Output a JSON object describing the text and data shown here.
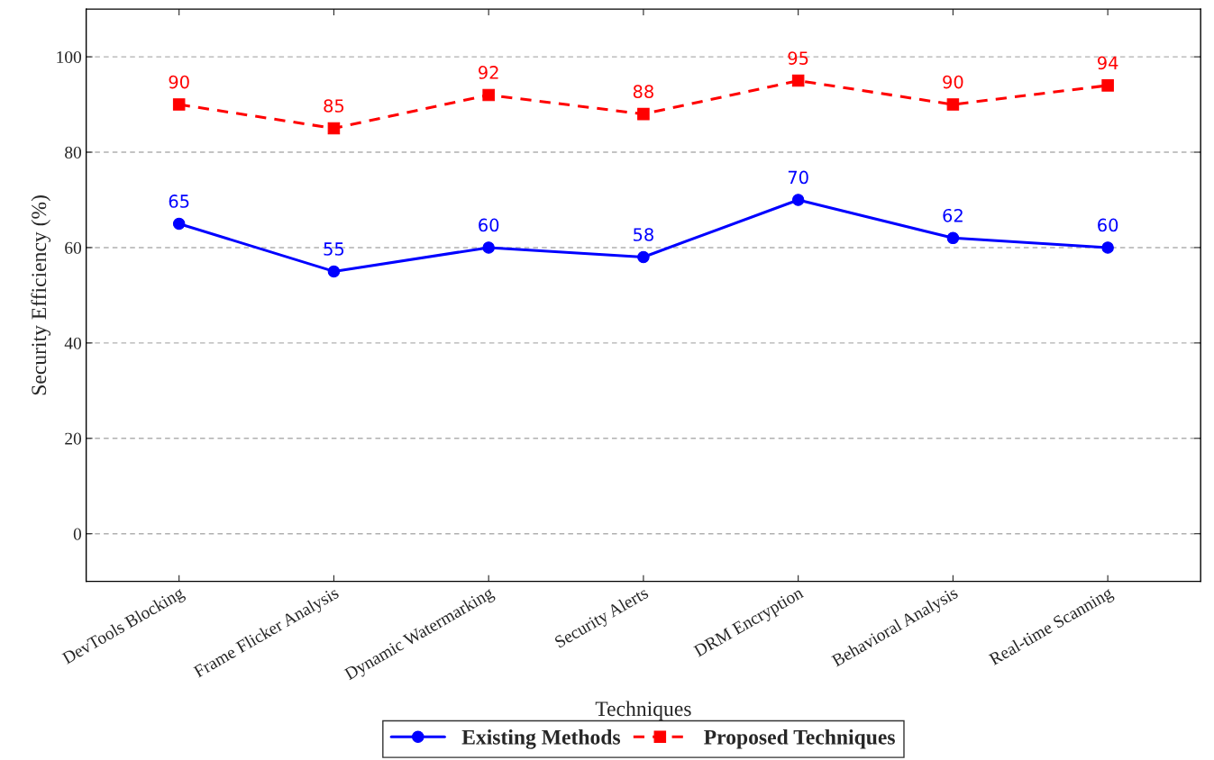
{
  "chart_data": {
    "type": "line",
    "xlabel": "Techniques",
    "ylabel": "Security Efficiency (%)",
    "categories": [
      "DevTools Blocking",
      "Frame Flicker Analysis",
      "Dynamic Watermarking",
      "Security Alerts",
      "DRM Encryption",
      "Behavioral Analysis",
      "Real-time Scanning"
    ],
    "series": [
      {
        "name": "Existing Methods",
        "color": "#0000ff",
        "marker": "circle",
        "line_style": "solid",
        "values": [
          65,
          55,
          60,
          58,
          70,
          62,
          60
        ]
      },
      {
        "name": "Proposed Techniques",
        "color": "#ff0000",
        "marker": "square",
        "line_style": "dashed",
        "values": [
          90,
          85,
          92,
          88,
          95,
          90,
          94
        ]
      }
    ],
    "ylim": [
      -10,
      110
    ],
    "yticks": [
      0,
      20,
      40,
      60,
      80,
      100
    ],
    "grid": "y",
    "legend": "bottom",
    "data_labels": true
  }
}
